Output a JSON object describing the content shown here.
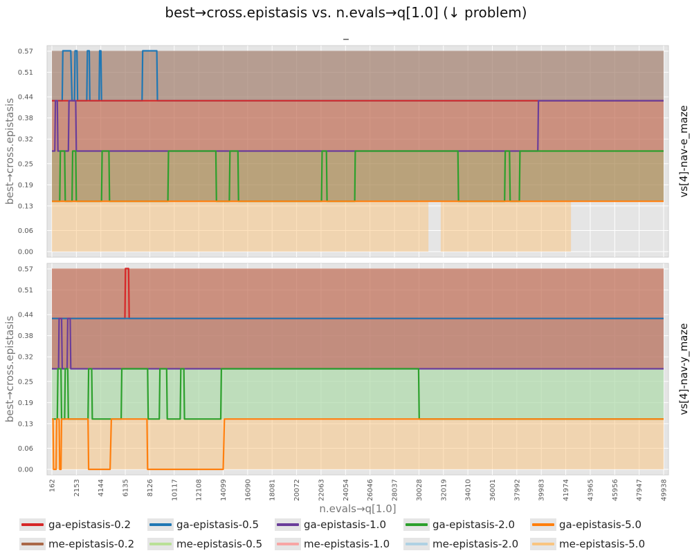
{
  "title": "best→cross.epistasis vs. n.evals→q[1.0] (↓ problem)",
  "subtitle": "_",
  "chart_data": {
    "type": "area",
    "xlabel": "n.evals→q[1.0]",
    "ylabel": "best→cross.epistasis",
    "x_ticks": [
      162,
      2153,
      4144,
      6135,
      8126,
      10117,
      12108,
      14099,
      16090,
      18081,
      20072,
      22063,
      24054,
      26046,
      28037,
      30028,
      32019,
      34010,
      36001,
      37992,
      39983,
      41974,
      43965,
      45956,
      47947,
      49938
    ],
    "y_ticks": [
      "0.00",
      "0.06",
      "0.13",
      "0.19",
      "0.25",
      "0.32",
      "0.38",
      "0.44",
      "0.51",
      "0.57"
    ],
    "xlim": [
      162,
      49938
    ],
    "ylim": [
      0,
      0.57
    ],
    "grid": true,
    "legend_position": "bottom",
    "series_styles": [
      {
        "name": "ga-epistasis-0.2",
        "color": "#d62728"
      },
      {
        "name": "ga-epistasis-0.5",
        "color": "#1f77b4"
      },
      {
        "name": "ga-epistasis-1.0",
        "color": "#6a3d9a"
      },
      {
        "name": "ga-epistasis-2.0",
        "color": "#2ca02c"
      },
      {
        "name": "ga-epistasis-5.0",
        "color": "#ff7f0e"
      },
      {
        "name": "me-epistasis-0.2",
        "color": "#a0522d"
      },
      {
        "name": "me-epistasis-0.5",
        "color": "#b2df8a"
      },
      {
        "name": "me-epistasis-1.0",
        "color": "#fb9a99"
      },
      {
        "name": "me-epistasis-2.0",
        "color": "#a6cee3"
      },
      {
        "name": "me-epistasis-5.0",
        "color": "#fdbf6f"
      }
    ],
    "panels": [
      {
        "facet_label": "vs[4]-nav-e_maze",
        "lines": [
          {
            "name": "ga-epistasis-0.5",
            "points": [
              [
                162,
                0.429
              ],
              [
                1000,
                0.429
              ],
              [
                1050,
                0.571
              ],
              [
                1700,
                0.571
              ],
              [
                1800,
                0.429
              ],
              [
                2000,
                0.429
              ],
              [
                2050,
                0.571
              ],
              [
                2200,
                0.571
              ],
              [
                2250,
                0.429
              ],
              [
                3000,
                0.429
              ],
              [
                3050,
                0.571
              ],
              [
                3200,
                0.571
              ],
              [
                3250,
                0.429
              ],
              [
                4000,
                0.429
              ],
              [
                4050,
                0.571
              ],
              [
                4150,
                0.571
              ],
              [
                4200,
                0.429
              ],
              [
                7500,
                0.429
              ],
              [
                7550,
                0.571
              ],
              [
                8700,
                0.571
              ],
              [
                8750,
                0.429
              ],
              [
                49938,
                0.429
              ]
            ]
          },
          {
            "name": "ga-epistasis-0.2",
            "points": [
              [
                162,
                0.429
              ],
              [
                49938,
                0.429
              ]
            ]
          },
          {
            "name": "ga-epistasis-1.0",
            "points": [
              [
                162,
                0.286
              ],
              [
                400,
                0.286
              ],
              [
                450,
                0.429
              ],
              [
                600,
                0.429
              ],
              [
                650,
                0.286
              ],
              [
                1500,
                0.286
              ],
              [
                1550,
                0.429
              ],
              [
                2100,
                0.429
              ],
              [
                2150,
                0.286
              ],
              [
                39700,
                0.286
              ],
              [
                39750,
                0.429
              ],
              [
                49938,
                0.429
              ]
            ]
          },
          {
            "name": "ga-epistasis-2.0",
            "points": [
              [
                162,
                0.143
              ],
              [
                800,
                0.143
              ],
              [
                850,
                0.286
              ],
              [
                1200,
                0.286
              ],
              [
                1250,
                0.143
              ],
              [
                1800,
                0.143
              ],
              [
                1850,
                0.286
              ],
              [
                2100,
                0.286
              ],
              [
                2150,
                0.143
              ],
              [
                4200,
                0.143
              ],
              [
                4250,
                0.286
              ],
              [
                4800,
                0.286
              ],
              [
                4850,
                0.143
              ],
              [
                9600,
                0.143
              ],
              [
                9650,
                0.286
              ],
              [
                13500,
                0.286
              ],
              [
                13550,
                0.143
              ],
              [
                14600,
                0.143
              ],
              [
                14650,
                0.286
              ],
              [
                15300,
                0.286
              ],
              [
                15350,
                0.143
              ],
              [
                22100,
                0.143
              ],
              [
                22150,
                0.286
              ],
              [
                22500,
                0.286
              ],
              [
                22550,
                0.143
              ],
              [
                24800,
                0.143
              ],
              [
                24850,
                0.286
              ],
              [
                33200,
                0.286
              ],
              [
                33250,
                0.143
              ],
              [
                37000,
                0.143
              ],
              [
                37050,
                0.286
              ],
              [
                37400,
                0.286
              ],
              [
                37450,
                0.143
              ],
              [
                38200,
                0.143
              ],
              [
                38250,
                0.286
              ],
              [
                49938,
                0.286
              ]
            ]
          },
          {
            "name": "ga-epistasis-5.0",
            "points": [
              [
                162,
                0.143
              ],
              [
                49938,
                0.143
              ]
            ]
          }
        ],
        "bands": [
          {
            "series": "me-epistasis-5.0",
            "x0": 162,
            "x1": 30800,
            "low": 0.0,
            "high": 0.143
          },
          {
            "series": "me-epistasis-5.0",
            "x0": 31800,
            "x1": 42400,
            "low": 0.0,
            "high": 0.143
          },
          {
            "series": "me-epistasis-2.0",
            "x0": 162,
            "x1": 26000,
            "low": 0.429,
            "high": 0.571
          },
          {
            "series": "me-epistasis-2.0",
            "x0": 26000,
            "x1": 49938,
            "low": 0.429,
            "high": 0.571
          },
          {
            "series": "me-epistasis-1.0",
            "x0": 162,
            "x1": 49938,
            "low": 0.286,
            "high": 0.429
          },
          {
            "series": "me-epistasis-0.5",
            "x0": 162,
            "x1": 49938,
            "low": 0.143,
            "high": 0.286
          },
          {
            "series": "me-epistasis-0.2",
            "x0": 162,
            "x1": 49938,
            "low": 0.143,
            "high": 0.571
          }
        ]
      },
      {
        "facet_label": "vs[4]-nav-y_maze",
        "lines": [
          {
            "name": "ga-epistasis-0.2",
            "points": [
              [
                162,
                0.429
              ],
              [
                6100,
                0.429
              ],
              [
                6150,
                0.571
              ],
              [
                6400,
                0.571
              ],
              [
                6450,
                0.429
              ],
              [
                49938,
                0.429
              ]
            ]
          },
          {
            "name": "ga-epistasis-0.5",
            "points": [
              [
                162,
                0.429
              ],
              [
                49938,
                0.429
              ]
            ]
          },
          {
            "name": "ga-epistasis-1.0",
            "points": [
              [
                162,
                0.286
              ],
              [
                700,
                0.286
              ],
              [
                750,
                0.429
              ],
              [
                950,
                0.429
              ],
              [
                1000,
                0.286
              ],
              [
                1400,
                0.286
              ],
              [
                1450,
                0.429
              ],
              [
                1650,
                0.429
              ],
              [
                1700,
                0.286
              ],
              [
                49938,
                0.286
              ]
            ]
          },
          {
            "name": "ga-epistasis-2.0",
            "points": [
              [
                162,
                0.143
              ],
              [
                600,
                0.143
              ],
              [
                650,
                0.286
              ],
              [
                900,
                0.286
              ],
              [
                950,
                0.143
              ],
              [
                1200,
                0.143
              ],
              [
                1250,
                0.286
              ],
              [
                1450,
                0.286
              ],
              [
                1500,
                0.143
              ],
              [
                3100,
                0.143
              ],
              [
                3150,
                0.286
              ],
              [
                3400,
                0.286
              ],
              [
                3450,
                0.143
              ],
              [
                5800,
                0.143
              ],
              [
                5850,
                0.286
              ],
              [
                7950,
                0.286
              ],
              [
                8000,
                0.143
              ],
              [
                8900,
                0.143
              ],
              [
                8950,
                0.286
              ],
              [
                9500,
                0.286
              ],
              [
                9550,
                0.143
              ],
              [
                10600,
                0.143
              ],
              [
                10650,
                0.286
              ],
              [
                10900,
                0.286
              ],
              [
                10950,
                0.143
              ],
              [
                13900,
                0.143
              ],
              [
                13950,
                0.286
              ],
              [
                30000,
                0.286
              ],
              [
                30050,
                0.143
              ],
              [
                49938,
                0.143
              ]
            ]
          },
          {
            "name": "ga-epistasis-5.0",
            "points": [
              [
                162,
                0.143
              ],
              [
                250,
                0.143
              ],
              [
                300,
                0.0
              ],
              [
                500,
                0.0
              ],
              [
                550,
                0.143
              ],
              [
                750,
                0.143
              ],
              [
                800,
                0.0
              ],
              [
                900,
                0.0
              ],
              [
                950,
                0.143
              ],
              [
                3100,
                0.143
              ],
              [
                3150,
                0.0
              ],
              [
                4900,
                0.0
              ],
              [
                5000,
                0.143
              ],
              [
                7900,
                0.143
              ],
              [
                7950,
                0.0
              ],
              [
                14100,
                0.0
              ],
              [
                14200,
                0.143
              ],
              [
                49938,
                0.143
              ]
            ]
          }
        ],
        "bands": [
          {
            "series": "me-epistasis-5.0",
            "x0": 162,
            "x1": 49938,
            "low": 0.0,
            "high": 0.143
          },
          {
            "series": "me-epistasis-2.0",
            "x0": 162,
            "x1": 49938,
            "low": 0.143,
            "high": 0.429
          },
          {
            "series": "me-epistasis-1.0",
            "x0": 162,
            "x1": 49938,
            "low": 0.286,
            "high": 0.571
          },
          {
            "series": "me-epistasis-0.5",
            "x0": 162,
            "x1": 49938,
            "low": 0.143,
            "high": 0.286
          },
          {
            "series": "me-epistasis-0.2",
            "x0": 162,
            "x1": 49938,
            "low": 0.286,
            "high": 0.571
          }
        ]
      }
    ]
  },
  "legend": {
    "items": [
      {
        "label": "ga-epistasis-0.2",
        "color": "#d62728"
      },
      {
        "label": "ga-epistasis-0.5",
        "color": "#1f77b4"
      },
      {
        "label": "ga-epistasis-1.0",
        "color": "#6a3d9a"
      },
      {
        "label": "ga-epistasis-2.0",
        "color": "#2ca02c"
      },
      {
        "label": "ga-epistasis-5.0",
        "color": "#ff7f0e"
      },
      {
        "label": "me-epistasis-0.2",
        "color": "#a0522d"
      },
      {
        "label": "me-epistasis-0.5",
        "color": "#b2df8a"
      },
      {
        "label": "me-epistasis-1.0",
        "color": "#fb9a99"
      },
      {
        "label": "me-epistasis-2.0",
        "color": "#a6cee3"
      },
      {
        "label": "me-epistasis-5.0",
        "color": "#fdbf6f"
      }
    ]
  }
}
